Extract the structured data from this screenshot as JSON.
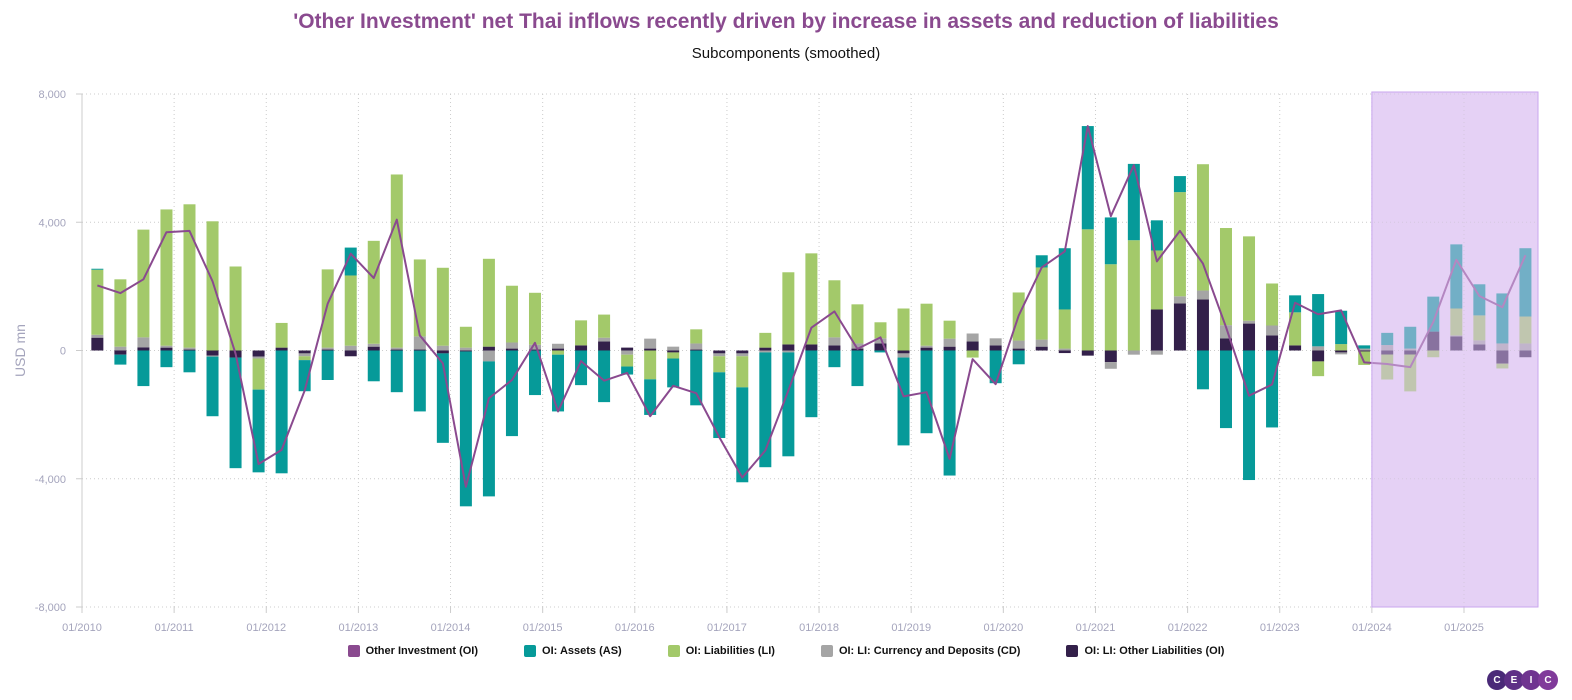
{
  "title": "'Other Investment' net Thai inflows recently driven by increase in assets and reduction of liabilities",
  "subtitle": "Subcomponents (smoothed)",
  "logo": [
    "C",
    "E",
    "I",
    "C"
  ],
  "colors": {
    "title": "#8a4a8f",
    "OI": "#8a4a8f",
    "AS": "#069a99",
    "LI": "#a3c96a",
    "CD": "#a5a5a5",
    "OL": "#33204a",
    "projection": "#ecdff7"
  },
  "chart_data": {
    "type": "bar",
    "stacked": true,
    "ylabel": "USD mn",
    "ylim": [
      -8000,
      8000
    ],
    "yticks": [
      "8,000",
      "4,000",
      "0",
      "-4,000",
      "-8,000"
    ],
    "ytick_values": [
      8000,
      4000,
      0,
      -4000,
      -8000
    ],
    "xticks": [
      "01/2010",
      "01/2011",
      "01/2012",
      "01/2013",
      "01/2014",
      "01/2015",
      "01/2016",
      "01/2017",
      "01/2018",
      "01/2019",
      "01/2020",
      "01/2021",
      "01/2022",
      "01/2023",
      "01/2024",
      "01/2025"
    ],
    "grid": true,
    "legend_position": "bottom",
    "projection_start": "01/2024",
    "categories": [
      "2010Q1",
      "2010Q2",
      "2010Q3",
      "2010Q4",
      "2011Q1",
      "2011Q2",
      "2011Q3",
      "2011Q4",
      "2012Q1",
      "2012Q2",
      "2012Q3",
      "2012Q4",
      "2013Q1",
      "2013Q2",
      "2013Q3",
      "2013Q4",
      "2014Q1",
      "2014Q2",
      "2014Q3",
      "2014Q4",
      "2015Q1",
      "2015Q2",
      "2015Q3",
      "2015Q4",
      "2016Q1",
      "2016Q2",
      "2016Q3",
      "2016Q4",
      "2017Q1",
      "2017Q2",
      "2017Q3",
      "2017Q4",
      "2018Q1",
      "2018Q2",
      "2018Q3",
      "2018Q4",
      "2019Q1",
      "2019Q2",
      "2019Q3",
      "2019Q4",
      "2020Q1",
      "2020Q2",
      "2020Q3",
      "2020Q4",
      "2021Q1",
      "2021Q2",
      "2021Q3",
      "2021Q4",
      "2022Q1",
      "2022Q2",
      "2022Q3",
      "2022Q4",
      "2023Q1",
      "2023Q2",
      "2023Q3",
      "2023Q4",
      "2024Q1",
      "2024Q2",
      "2024Q3",
      "2024Q4",
      "2025Q1",
      "2025Q2",
      "2025Q3"
    ],
    "series": [
      {
        "key": "OL",
        "name": "OI: LI: Other Liabilities (OI)",
        "kind": "bar",
        "values": [
          400,
          -130,
          100,
          90,
          30,
          -160,
          -220,
          -190,
          90,
          -90,
          30,
          -180,
          120,
          30,
          30,
          -90,
          -30,
          120,
          60,
          30,
          60,
          160,
          280,
          90,
          60,
          -60,
          30,
          -90,
          -90,
          90,
          190,
          190,
          160,
          60,
          220,
          -90,
          90,
          120,
          280,
          160,
          60,
          120,
          -80,
          -160,
          -360,
          0,
          1280,
          1470,
          1590,
          380,
          840,
          470,
          160,
          -340,
          -60,
          -30,
          -125,
          -125,
          590,
          440,
          190,
          -410,
          -210
        ]
      },
      {
        "key": "CD",
        "name": "OI: LI: Currency and Deposits (CD)",
        "kind": "bar",
        "values": [
          90,
          120,
          310,
          60,
          60,
          -30,
          0,
          -60,
          0,
          -90,
          60,
          150,
          90,
          60,
          410,
          150,
          90,
          -340,
          190,
          150,
          150,
          0,
          120,
          -130,
          310,
          120,
          190,
          -90,
          -90,
          -60,
          -60,
          0,
          250,
          160,
          160,
          -130,
          60,
          250,
          250,
          220,
          250,
          220,
          60,
          0,
          -210,
          -130,
          -130,
          220,
          280,
          410,
          90,
          310,
          0,
          130,
          -60,
          60,
          170,
          60,
          0,
          30,
          125,
          220,
          220
        ]
      },
      {
        "key": "LI",
        "name": "OI: Liabilities (LI)",
        "kind": "bar",
        "values": [
          2030,
          2100,
          3360,
          4250,
          4470,
          4030,
          2620,
          -970,
          770,
          -120,
          2440,
          2190,
          3210,
          5400,
          2400,
          2430,
          650,
          2740,
          1770,
          1620,
          -130,
          780,
          720,
          -370,
          -900,
          -190,
          440,
          -500,
          -970,
          460,
          2250,
          2840,
          1780,
          1220,
          500,
          1310,
          1310,
          560,
          -220,
          0,
          1500,
          2250,
          1220,
          3780,
          2690,
          3440,
          1840,
          3250,
          3940,
          3030,
          2630,
          1310,
          1030,
          -460,
          200,
          -420,
          -780,
          -1150,
          -210,
          840,
          780,
          -150,
          840
        ]
      },
      {
        "key": "AS",
        "name": "OI: Assets (AS)",
        "kind": "bar",
        "values": [
          30,
          -310,
          -1110,
          -520,
          -680,
          -1860,
          -3450,
          -2580,
          -3830,
          -970,
          -920,
          870,
          -960,
          -1300,
          -1900,
          -2790,
          -4830,
          -4210,
          -2670,
          -1390,
          -1770,
          -1080,
          -1610,
          -250,
          -1110,
          -900,
          -1710,
          -2050,
          -2960,
          -3580,
          -3240,
          -2080,
          -520,
          -1110,
          -60,
          -2740,
          -2580,
          -3900,
          0,
          -1020,
          -430,
          380,
          1910,
          3220,
          1460,
          2380,
          940,
          500,
          -1210,
          -2420,
          -4040,
          -2400,
          530,
          1630,
          1040,
          100,
          380,
          680,
          1090,
          2000,
          970,
          1560,
          2130
        ]
      },
      {
        "key": "OI",
        "name": "Other Investment (OI)",
        "kind": "line",
        "values": [
          2030,
          1790,
          2220,
          3690,
          3730,
          2160,
          -100,
          -3540,
          -3100,
          -1250,
          1460,
          3020,
          2260,
          4080,
          470,
          -400,
          -4250,
          -1490,
          -920,
          240,
          -1900,
          -330,
          -940,
          -700,
          -2050,
          -1100,
          -1330,
          -2700,
          -3960,
          -3120,
          -1250,
          710,
          1220,
          50,
          410,
          -1430,
          -1300,
          -3380,
          -270,
          -1050,
          1090,
          2590,
          3090,
          7000,
          4190,
          5780,
          2780,
          3730,
          2710,
          730,
          -1410,
          -1060,
          1490,
          1130,
          1250,
          -370,
          -420,
          -520,
          890,
          2830,
          1700,
          1350,
          2970
        ]
      }
    ]
  },
  "legend": [
    {
      "key": "OI",
      "label": "Other Investment (OI)"
    },
    {
      "key": "AS",
      "label": "OI: Assets (AS)"
    },
    {
      "key": "LI",
      "label": "OI: Liabilities (LI)"
    },
    {
      "key": "CD",
      "label": "OI: LI: Currency and Deposits (CD)"
    },
    {
      "key": "OL",
      "label": "OI: LI: Other Liabilities (OI)"
    }
  ]
}
